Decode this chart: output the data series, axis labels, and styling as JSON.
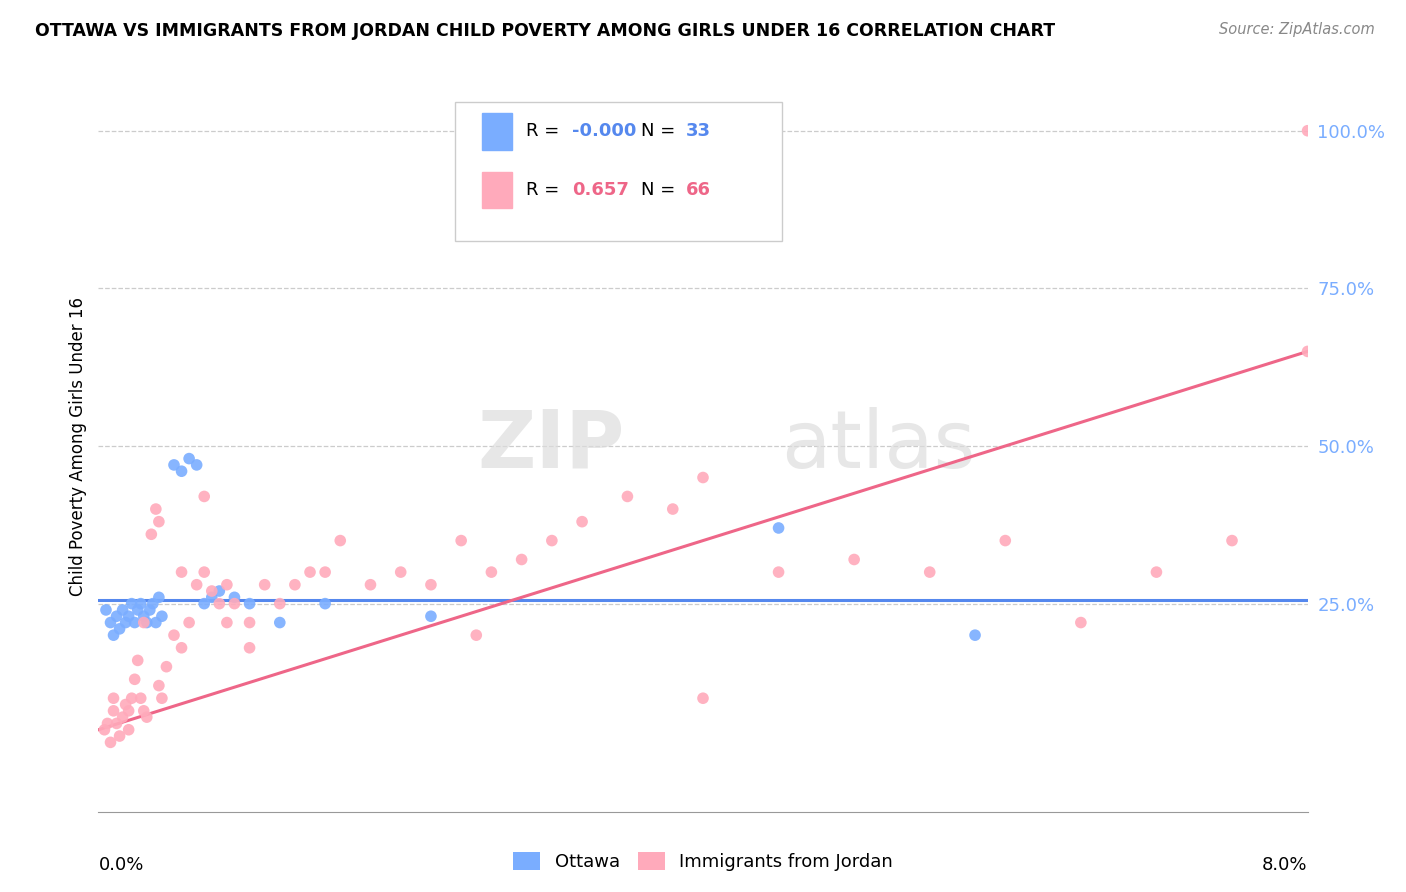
{
  "title": "OTTAWA VS IMMIGRANTS FROM JORDAN CHILD POVERTY AMONG GIRLS UNDER 16 CORRELATION CHART",
  "source": "Source: ZipAtlas.com",
  "ylabel": "Child Poverty Among Girls Under 16",
  "xlim": [
    0.0,
    8.0
  ],
  "ylim": [
    -0.08,
    1.08
  ],
  "yticks": [
    0.0,
    0.25,
    0.5,
    0.75,
    1.0
  ],
  "ytick_labels": [
    "",
    "25.0%",
    "50.0%",
    "75.0%",
    "100.0%"
  ],
  "legend_ottawa_R": "-0.000",
  "legend_ottawa_N": "33",
  "legend_jordan_R": "0.657",
  "legend_jordan_N": "66",
  "ottawa_color": "#7aadff",
  "jordan_color": "#ffaabb",
  "ottawa_line_color": "#5588ee",
  "jordan_line_color": "#ee6688",
  "watermark_zip": "ZIP",
  "watermark_atlas": "atlas",
  "ottawa_x": [
    0.05,
    0.08,
    0.1,
    0.12,
    0.14,
    0.16,
    0.18,
    0.2,
    0.22,
    0.24,
    0.26,
    0.28,
    0.3,
    0.32,
    0.34,
    0.36,
    0.38,
    0.4,
    0.42,
    0.5,
    0.55,
    0.6,
    0.65,
    0.7,
    0.75,
    0.8,
    0.9,
    1.0,
    1.2,
    1.5,
    2.2,
    4.5,
    5.8
  ],
  "ottawa_y": [
    0.24,
    0.22,
    0.2,
    0.23,
    0.21,
    0.24,
    0.22,
    0.23,
    0.25,
    0.22,
    0.24,
    0.25,
    0.23,
    0.22,
    0.24,
    0.25,
    0.22,
    0.26,
    0.23,
    0.47,
    0.46,
    0.48,
    0.47,
    0.25,
    0.26,
    0.27,
    0.26,
    0.25,
    0.22,
    0.25,
    0.23,
    0.37,
    0.2
  ],
  "jordan_x": [
    0.04,
    0.06,
    0.08,
    0.1,
    0.12,
    0.14,
    0.16,
    0.18,
    0.2,
    0.22,
    0.24,
    0.26,
    0.28,
    0.3,
    0.32,
    0.35,
    0.38,
    0.4,
    0.42,
    0.45,
    0.5,
    0.55,
    0.6,
    0.65,
    0.7,
    0.75,
    0.8,
    0.85,
    0.9,
    1.0,
    1.1,
    1.2,
    1.3,
    1.4,
    1.6,
    1.8,
    2.0,
    2.2,
    2.4,
    2.6,
    2.8,
    3.0,
    3.2,
    3.5,
    3.8,
    4.0,
    4.5,
    5.0,
    5.5,
    6.0,
    6.5,
    7.0,
    7.5,
    8.0,
    8.0,
    0.1,
    0.2,
    0.3,
    0.4,
    0.55,
    0.7,
    0.85,
    1.0,
    1.5,
    2.5,
    4.0
  ],
  "jordan_y": [
    0.05,
    0.06,
    0.03,
    0.08,
    0.06,
    0.04,
    0.07,
    0.09,
    0.05,
    0.1,
    0.13,
    0.16,
    0.1,
    0.08,
    0.07,
    0.36,
    0.4,
    0.12,
    0.1,
    0.15,
    0.2,
    0.18,
    0.22,
    0.28,
    0.3,
    0.27,
    0.25,
    0.28,
    0.25,
    0.22,
    0.28,
    0.25,
    0.28,
    0.3,
    0.35,
    0.28,
    0.3,
    0.28,
    0.35,
    0.3,
    0.32,
    0.35,
    0.38,
    0.42,
    0.4,
    0.45,
    0.3,
    0.32,
    0.3,
    0.35,
    0.22,
    0.3,
    0.35,
    0.65,
    1.0,
    0.1,
    0.08,
    0.22,
    0.38,
    0.3,
    0.42,
    0.22,
    0.18,
    0.3,
    0.2,
    0.1
  ],
  "ottawa_trend_x": [
    0.0,
    8.0
  ],
  "ottawa_trend_y": [
    0.255,
    0.255
  ],
  "jordan_trend_x": [
    0.0,
    8.0
  ],
  "jordan_trend_y": [
    0.05,
    0.65
  ]
}
